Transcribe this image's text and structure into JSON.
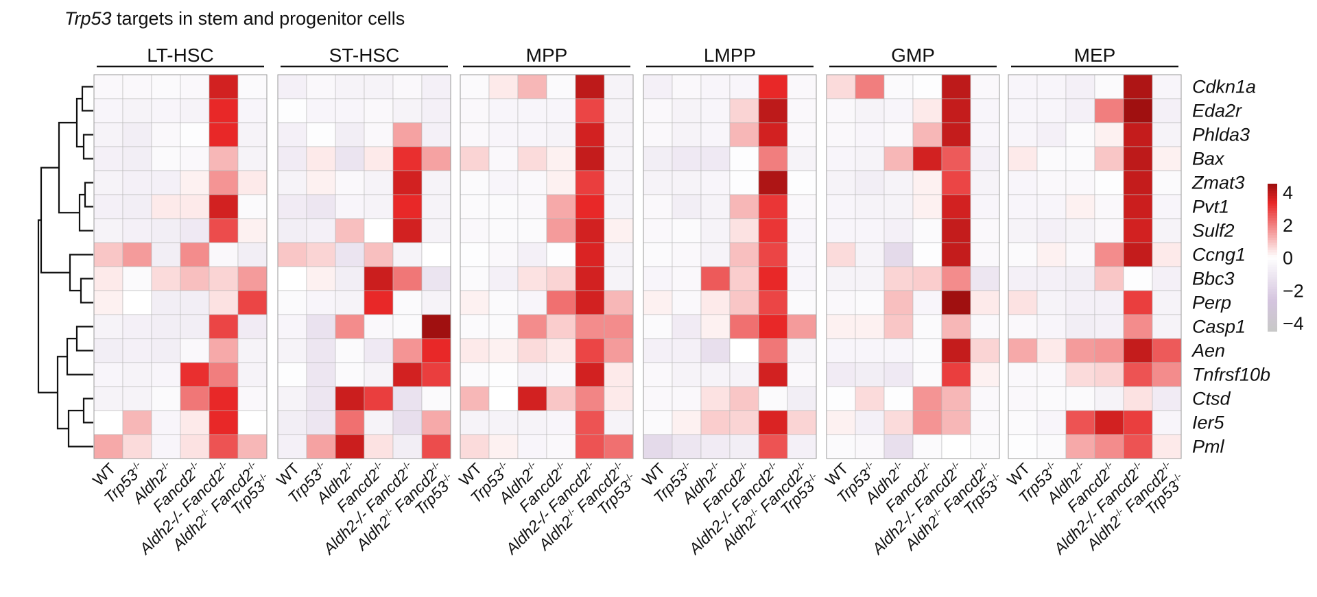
{
  "title_prefix": "Trp53",
  "title_suffix": " targets in stem and progenitor cells",
  "chart_data": {
    "type": "heatmap",
    "panels": [
      "LT-HSC",
      "ST-HSC",
      "MPP",
      "LMPP",
      "GMP",
      "MEP"
    ],
    "genes": [
      "Cdkn1a",
      "Eda2r",
      "Phlda3",
      "Bax",
      "Zmat3",
      "Pvt1",
      "Sulf2",
      "Ccng1",
      "Bbc3",
      "Perp",
      "Casp1",
      "Aen",
      "Tnfrsf10b",
      "Ctsd",
      "Ier5",
      "Pml"
    ],
    "columns": [
      {
        "name": "WT",
        "parts": [
          [
            "WT",
            false,
            false
          ]
        ],
        "highlight": false
      },
      {
        "name": "Trp53-/-",
        "parts": [
          [
            "Trp53",
            true,
            false
          ],
          [
            "-/-",
            false,
            true
          ]
        ],
        "highlight": false
      },
      {
        "name": "Aldh2-/-",
        "parts": [
          [
            "Aldh2",
            true,
            false
          ],
          [
            "-/-",
            false,
            true
          ]
        ],
        "highlight": false
      },
      {
        "name": "Fancd2-/-",
        "parts": [
          [
            "Fancd2",
            true,
            false
          ],
          [
            "-/-",
            false,
            true
          ]
        ],
        "highlight": false
      },
      {
        "name": "Aldh2-/- Fancd2-/-",
        "parts": [
          [
            "Aldh2-/- Fancd2",
            true,
            false
          ],
          [
            "-/-",
            false,
            true
          ]
        ],
        "highlight": true
      },
      {
        "name": "Aldh2-/- Fancd2-/- Trp53-/-",
        "parts": [
          [
            "Aldh2",
            true,
            false
          ],
          [
            "-/-",
            false,
            true
          ],
          [
            " Fancd2",
            true,
            false
          ],
          [
            "-/-",
            false,
            true
          ]
        ],
        "parts2": [
          [
            "Trp53",
            true,
            false
          ],
          [
            "-/-",
            false,
            true
          ]
        ],
        "highlight": false
      }
    ],
    "highlight_color": "#b01c1c",
    "colorbar": {
      "ticks": [
        "4",
        "2",
        "0",
        "−2",
        "−4"
      ],
      "range": [
        -4,
        4
      ],
      "high_color": "#a01010",
      "mid_color": "#ffffff",
      "low_color": "#c8c8c8"
    },
    "values": [
      [
        [
          -0.3,
          -0.3,
          -0.2,
          -0.3,
          3.3,
          -0.2
        ],
        [
          -0.4,
          -0.5,
          -0.4,
          -0.5,
          3.0,
          -0.4
        ],
        [
          -0.5,
          -0.7,
          -0.3,
          -0.1,
          3.0,
          -0.5
        ],
        [
          -0.6,
          -0.7,
          -0.2,
          -0.3,
          1.0,
          -0.5
        ],
        [
          -0.5,
          -0.6,
          -0.6,
          0.2,
          1.5,
          0.3
        ],
        [
          -0.6,
          -0.7,
          0.3,
          0.3,
          3.3,
          -0.2
        ],
        [
          -0.5,
          -0.6,
          -0.7,
          -0.9,
          2.5,
          0.2
        ],
        [
          0.8,
          1.4,
          -0.7,
          1.6,
          -0.3,
          -0.7
        ],
        [
          0.3,
          -0.2,
          0.5,
          0.9,
          0.6,
          1.4
        ],
        [
          0.2,
          0.0,
          -0.7,
          -0.7,
          0.4,
          2.6
        ],
        [
          -0.5,
          -0.6,
          -0.7,
          -0.7,
          2.6,
          -0.8
        ],
        [
          -0.7,
          -0.6,
          -0.7,
          -0.3,
          1.2,
          -0.5
        ],
        [
          -0.4,
          -0.5,
          -0.4,
          2.9,
          1.8,
          -0.5
        ],
        [
          -0.5,
          -0.5,
          -0.2,
          1.9,
          3.0,
          -0.3
        ],
        [
          0.0,
          1.0,
          -0.4,
          0.3,
          3.0,
          0.0
        ],
        [
          1.2,
          0.5,
          -0.4,
          0.4,
          2.4,
          1.0
        ]
      ],
      [
        [
          -0.6,
          -0.3,
          -0.5,
          -0.5,
          -0.3,
          -0.6
        ],
        [
          -0.1,
          -0.4,
          -0.4,
          -0.3,
          -0.5,
          -0.6
        ],
        [
          -0.6,
          -0.1,
          -0.7,
          -0.3,
          1.3,
          -0.6
        ],
        [
          -0.8,
          0.3,
          -1.1,
          0.3,
          2.9,
          1.3
        ],
        [
          -0.5,
          0.2,
          -0.3,
          -0.5,
          3.3,
          -0.5
        ],
        [
          -0.8,
          -1.0,
          -0.4,
          -0.5,
          3.0,
          -0.5
        ],
        [
          -0.7,
          -0.6,
          0.9,
          0.0,
          3.3,
          -0.5
        ],
        [
          0.8,
          0.6,
          -1.1,
          0.9,
          -0.5,
          0.0
        ],
        [
          0.0,
          0.2,
          -0.7,
          3.4,
          1.9,
          -1.1
        ],
        [
          -0.2,
          -0.4,
          -0.5,
          3.0,
          -0.2,
          -0.5
        ],
        [
          -0.4,
          -1.2,
          1.6,
          -0.3,
          -0.2,
          4.0
        ],
        [
          -0.5,
          -1.0,
          -0.2,
          -0.9,
          1.5,
          3.0
        ],
        [
          -0.1,
          -1.0,
          -0.2,
          -0.5,
          3.3,
          2.7
        ],
        [
          -0.5,
          -1.0,
          3.4,
          2.7,
          -1.2,
          -0.2
        ],
        [
          -0.7,
          -1.0,
          2.0,
          -0.5,
          -1.3,
          1.2
        ],
        [
          -0.6,
          1.3,
          3.4,
          0.4,
          -0.7,
          2.5
        ]
      ],
      [
        [
          -0.2,
          0.3,
          1.0,
          -0.2,
          3.6,
          -0.5
        ],
        [
          -0.3,
          -0.4,
          -0.4,
          -0.4,
          2.6,
          -0.5
        ],
        [
          -0.3,
          -0.4,
          -0.4,
          -0.5,
          3.3,
          -0.5
        ],
        [
          0.6,
          -0.3,
          0.5,
          0.2,
          3.5,
          -0.5
        ],
        [
          -0.2,
          -0.4,
          -0.3,
          0.2,
          2.7,
          -0.5
        ],
        [
          -0.2,
          -0.2,
          -0.3,
          1.2,
          3.0,
          -0.5
        ],
        [
          -0.3,
          -0.2,
          -0.2,
          1.4,
          3.3,
          0.2
        ],
        [
          -0.1,
          -0.3,
          -0.6,
          -0.1,
          3.2,
          -0.5
        ],
        [
          -0.2,
          -0.6,
          0.4,
          0.6,
          3.3,
          -0.5
        ],
        [
          0.2,
          -0.2,
          -0.4,
          2.0,
          3.3,
          1.0
        ],
        [
          -0.2,
          -0.2,
          1.6,
          0.7,
          1.6,
          1.6
        ],
        [
          0.3,
          0.2,
          0.5,
          0.3,
          2.6,
          1.4
        ],
        [
          -0.2,
          -0.1,
          -0.5,
          -0.3,
          3.3,
          0.3
        ],
        [
          1.0,
          0.0,
          3.3,
          0.8,
          1.7,
          0.3
        ],
        [
          -0.5,
          -0.5,
          -0.5,
          -0.4,
          2.4,
          -0.5
        ],
        [
          0.5,
          0.2,
          -0.4,
          -0.3,
          2.4,
          2.0
        ]
      ],
      [
        [
          -0.6,
          -0.3,
          -0.4,
          -0.4,
          3.0,
          -0.3
        ],
        [
          -0.3,
          -0.5,
          -0.4,
          0.6,
          3.6,
          -0.3
        ],
        [
          -0.3,
          -0.5,
          -0.4,
          1.0,
          3.3,
          -0.3
        ],
        [
          -0.7,
          -0.9,
          -0.9,
          -0.1,
          1.8,
          -0.5
        ],
        [
          -0.5,
          -0.5,
          -0.4,
          -0.1,
          3.8,
          -0.1
        ],
        [
          -0.3,
          -0.7,
          -0.5,
          1.0,
          2.8,
          -0.3
        ],
        [
          -0.3,
          -0.2,
          -0.5,
          0.4,
          2.8,
          -0.4
        ],
        [
          -0.2,
          -0.3,
          -0.5,
          0.9,
          2.6,
          -0.4
        ],
        [
          -0.4,
          -0.3,
          2.3,
          0.7,
          3.0,
          -0.4
        ],
        [
          0.2,
          -0.3,
          0.3,
          0.8,
          2.6,
          -0.2
        ],
        [
          -0.2,
          -0.8,
          0.2,
          2.0,
          3.0,
          1.4
        ],
        [
          -0.6,
          -0.6,
          -1.3,
          0.0,
          1.9,
          -0.5
        ],
        [
          -0.3,
          -0.5,
          -0.5,
          -0.5,
          3.3,
          -0.3
        ],
        [
          -0.3,
          -0.3,
          0.4,
          0.8,
          -0.2,
          -0.7
        ],
        [
          -0.2,
          0.2,
          0.7,
          0.6,
          3.2,
          0.6
        ],
        [
          -1.5,
          -1.0,
          -0.8,
          -0.7,
          2.4,
          -0.6
        ]
      ],
      [
        [
          0.5,
          1.8,
          -0.2,
          -0.1,
          3.6,
          -0.3
        ],
        [
          -0.3,
          -0.5,
          -0.4,
          0.3,
          3.5,
          -0.4
        ],
        [
          -0.3,
          -0.4,
          -0.3,
          1.0,
          3.5,
          -0.4
        ],
        [
          -0.4,
          -0.5,
          1.0,
          3.3,
          2.3,
          -0.6
        ],
        [
          -0.5,
          -0.7,
          -0.5,
          0.2,
          2.6,
          -0.5
        ],
        [
          -0.4,
          -0.5,
          -0.5,
          0.2,
          3.3,
          -0.4
        ],
        [
          -0.4,
          -0.4,
          -0.6,
          -0.2,
          3.5,
          -0.3
        ],
        [
          0.5,
          -0.5,
          -1.5,
          -0.1,
          3.5,
          -0.3
        ],
        [
          -0.5,
          -0.5,
          0.6,
          0.7,
          1.6,
          -1.0
        ],
        [
          -0.3,
          -0.2,
          0.9,
          -0.4,
          4.2,
          0.3
        ],
        [
          0.2,
          0.2,
          0.8,
          -0.2,
          1.0,
          -0.3
        ],
        [
          -0.4,
          -0.4,
          -0.4,
          -0.2,
          3.5,
          0.6
        ],
        [
          -0.8,
          -0.7,
          -0.9,
          -0.2,
          2.7,
          0.2
        ],
        [
          -0.1,
          0.5,
          -0.1,
          1.5,
          1.0,
          -0.3
        ],
        [
          0.2,
          -0.6,
          0.5,
          1.5,
          1.0,
          -0.3
        ],
        [
          -0.2,
          -0.3,
          -1.3,
          -0.2,
          0.0,
          -0.2
        ]
      ],
      [
        [
          -0.4,
          -0.4,
          -0.6,
          -0.2,
          3.8,
          -0.4
        ],
        [
          -0.4,
          -0.4,
          -0.6,
          1.8,
          4.0,
          -0.6
        ],
        [
          -0.4,
          -0.6,
          -0.2,
          0.2,
          3.5,
          -0.5
        ],
        [
          0.3,
          -0.2,
          -0.2,
          0.8,
          3.6,
          0.2
        ],
        [
          -0.4,
          -0.3,
          -0.3,
          -0.1,
          3.5,
          -0.2
        ],
        [
          -0.4,
          -0.4,
          0.2,
          -0.3,
          3.4,
          -0.4
        ],
        [
          -0.5,
          -0.6,
          -0.5,
          -0.3,
          3.3,
          -0.5
        ],
        [
          -0.2,
          0.2,
          -0.3,
          1.6,
          3.5,
          0.3
        ],
        [
          -0.6,
          -0.6,
          -0.7,
          0.8,
          -0.1,
          -0.6
        ],
        [
          0.4,
          -0.5,
          -0.6,
          -0.6,
          2.7,
          -0.5
        ],
        [
          -0.3,
          -0.4,
          -0.7,
          -0.6,
          1.6,
          -0.5
        ],
        [
          1.2,
          0.3,
          1.4,
          1.5,
          3.5,
          2.3
        ],
        [
          -0.3,
          -0.3,
          0.5,
          0.6,
          2.4,
          1.6
        ],
        [
          -0.3,
          -0.2,
          -0.2,
          -0.5,
          0.4,
          -0.8
        ],
        [
          -0.2,
          -0.4,
          2.4,
          3.3,
          2.7,
          -0.4
        ],
        [
          -0.1,
          -0.2,
          1.2,
          1.6,
          2.4,
          0.3
        ]
      ]
    ]
  }
}
